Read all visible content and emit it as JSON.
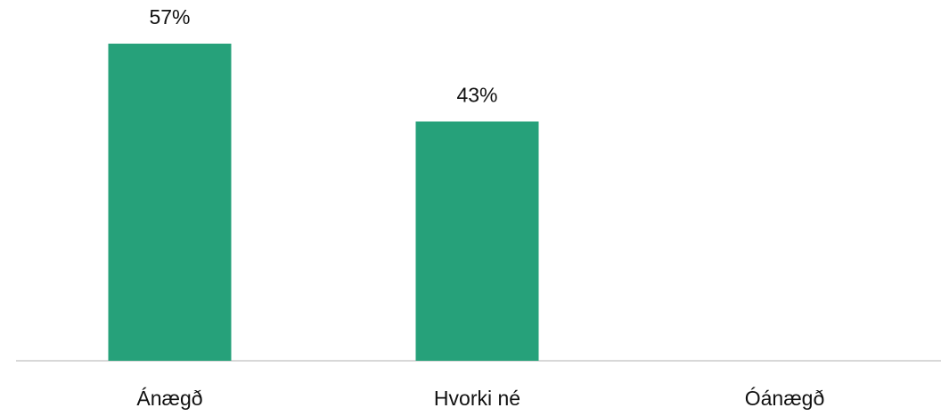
{
  "chart_data": {
    "type": "bar",
    "categories": [
      "Ánægð",
      "Hvorki né",
      "Óánægð"
    ],
    "values": [
      57,
      43,
      null
    ],
    "value_labels": [
      "57%",
      "43%",
      null
    ],
    "color": "#26a17a"
  }
}
